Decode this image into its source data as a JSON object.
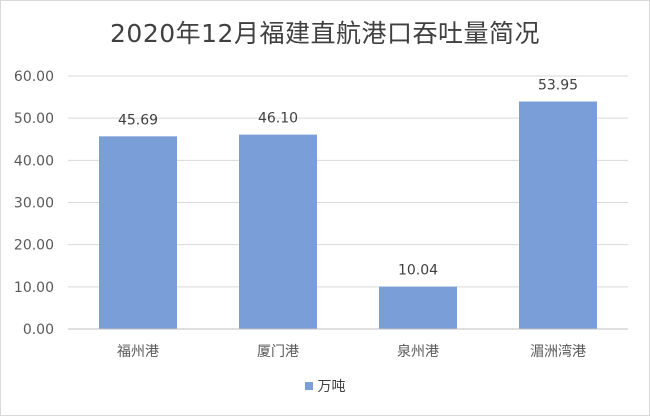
{
  "chart_data": {
    "type": "bar",
    "title": "2020年12月福建直航港口吞吐量简况",
    "categories": [
      "福州港",
      "厦门港",
      "泉州港",
      "湄洲湾港"
    ],
    "series": [
      {
        "name": "万吨",
        "values": [
          45.69,
          46.1,
          10.04,
          53.95
        ],
        "labels": [
          "45.69",
          "46.10",
          "10.04",
          "53.95"
        ],
        "color": "#7a9ed8"
      }
    ],
    "ylim": [
      0,
      60
    ],
    "yticks": [
      "0.00",
      "10.00",
      "20.00",
      "30.00",
      "40.00",
      "50.00",
      "60.00"
    ],
    "grid": true,
    "legend_position": "bottom"
  }
}
